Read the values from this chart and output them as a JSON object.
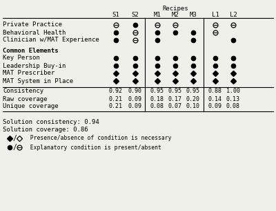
{
  "recipes": [
    "S1",
    "S2",
    "M1",
    "M2",
    "M3",
    "L1",
    "L2"
  ],
  "table_data": {
    "Private Practice": [
      "Θ",
      "●",
      "Θ",
      "Θ",
      "",
      "Θ",
      "Θ"
    ],
    "Behavioral Health": [
      "●",
      "Θ",
      "●",
      "●",
      "●",
      "Θ",
      ""
    ],
    "Clinician w/MAT Experience": [
      "●",
      "Θ",
      "●",
      "",
      "●",
      "",
      "●"
    ],
    "Key Person": [
      "●",
      "●",
      "●",
      "●",
      "●",
      "●",
      "●"
    ],
    "Leadership Buy-in": [
      "●",
      "●",
      "●",
      "●",
      "●",
      "●",
      "●"
    ],
    "MAT Prescriber": [
      "♦",
      "♦",
      "♦",
      "♦",
      "♦",
      "♦",
      "♦"
    ],
    "MAT System in Place": [
      "♦",
      "♦",
      "♦",
      "♦",
      "♦",
      "♦",
      "♦"
    ]
  },
  "metrics": {
    "Consistency": [
      "0.92",
      "0.90",
      "0.95",
      "0.95",
      "0.95",
      "0.88",
      "1.00"
    ],
    "Raw coverage": [
      "0.21",
      "0.09",
      "0.18",
      "0.17",
      "0.20",
      "0.14",
      "0.13"
    ],
    "Unique coverage": [
      "0.21",
      "0.09",
      "0.08",
      "0.07",
      "0.10",
      "0.09",
      "0.08"
    ]
  },
  "solution_consistency": "0.94",
  "solution_coverage": "0.86",
  "bg_color": "#f0f0eb",
  "font_family": "monospace"
}
